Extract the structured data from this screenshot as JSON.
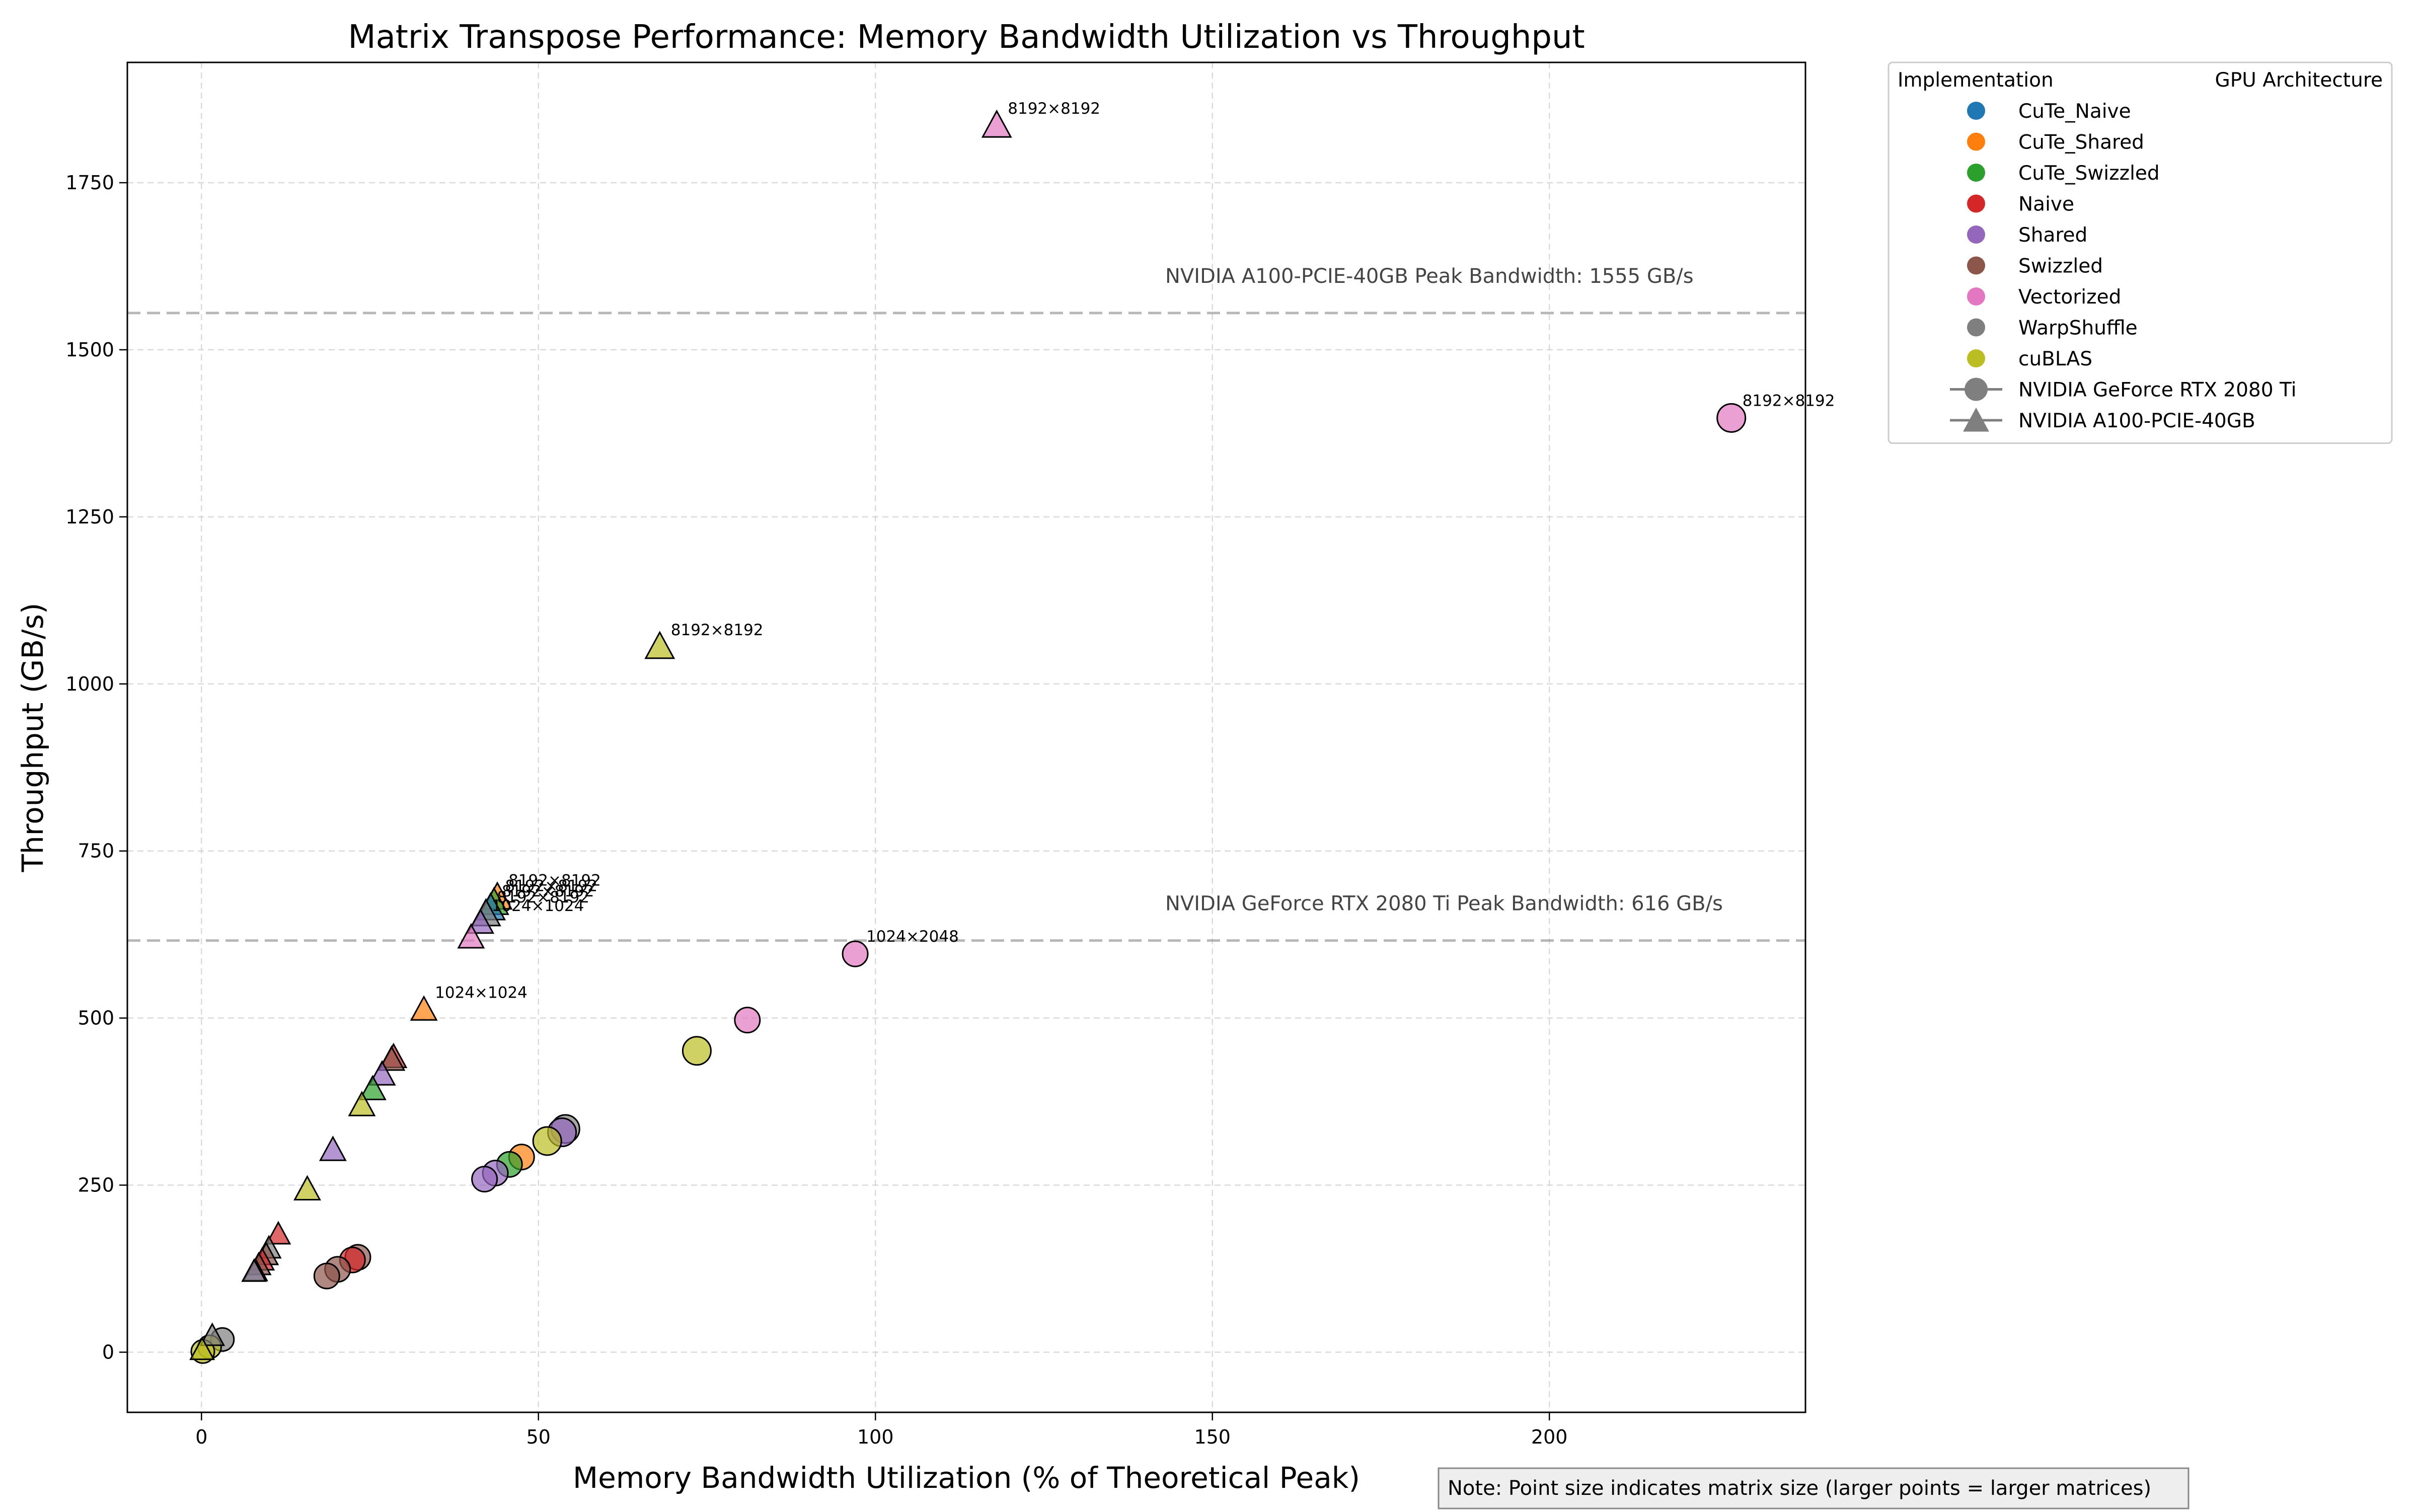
{
  "chart_data": {
    "type": "scatter",
    "title": "Matrix Transpose Performance: Memory Bandwidth Utilization vs Throughput",
    "xlabel": "Memory Bandwidth Utilization (% of Theoretical Peak)",
    "ylabel": "Throughput (GB/s)",
    "xlim": [
      -11,
      238
    ],
    "ylim": [
      -90,
      1930
    ],
    "xticks": [
      0,
      50,
      100,
      150,
      200
    ],
    "yticks": [
      0,
      250,
      500,
      750,
      1000,
      1250,
      1500,
      1750
    ],
    "grid": true,
    "legend_position": "outside-right",
    "implementation_legend_title": "Implementation",
    "gpu_legend_title": "GPU Architecture",
    "implementations": [
      {
        "name": "CuTe_Naive",
        "color": "#1f77b4"
      },
      {
        "name": "CuTe_Shared",
        "color": "#ff7f0e"
      },
      {
        "name": "CuTe_Swizzled",
        "color": "#2ca02c"
      },
      {
        "name": "Naive",
        "color": "#d62728"
      },
      {
        "name": "Shared",
        "color": "#9467bd"
      },
      {
        "name": "Swizzled",
        "color": "#8c564b"
      },
      {
        "name": "Vectorized",
        "color": "#e377c2"
      },
      {
        "name": "WarpShuffle",
        "color": "#7f7f7f"
      },
      {
        "name": "cuBLAS",
        "color": "#bcbd22"
      }
    ],
    "gpus": [
      {
        "name": "NVIDIA GeForce RTX 2080 Ti",
        "marker": "circle"
      },
      {
        "name": "NVIDIA A100-PCIE-40GB",
        "marker": "triangle"
      }
    ],
    "reference_lines": [
      {
        "y": 1555,
        "label": "NVIDIA A100-PCIE-40GB Peak Bandwidth: 1555 GB/s"
      },
      {
        "y": 616,
        "label": "NVIDIA GeForce RTX 2080 Ti Peak Bandwidth: 616 GB/s"
      }
    ],
    "points": [
      {
        "impl": "Vectorized",
        "gpu": "NVIDIA A100-PCIE-40GB",
        "x": 118,
        "y": 1835,
        "size": 3,
        "label": "8192×8192"
      },
      {
        "impl": "Vectorized",
        "gpu": "NVIDIA GeForce RTX 2080 Ti",
        "x": 227,
        "y": 1398,
        "size": 3,
        "label": "8192×8192"
      },
      {
        "impl": "cuBLAS",
        "gpu": "NVIDIA A100-PCIE-40GB",
        "x": 68,
        "y": 1055,
        "size": 3,
        "label": "8192×8192"
      },
      {
        "impl": "CuTe_Shared",
        "gpu": "NVIDIA A100-PCIE-40GB",
        "x": 43.9,
        "y": 680,
        "size": 3,
        "label": "8192×8192"
      },
      {
        "impl": "CuTe_Swizzled",
        "gpu": "NVIDIA A100-PCIE-40GB",
        "x": 43.4,
        "y": 672,
        "size": 3,
        "label": "8192×8192"
      },
      {
        "impl": "CuTe_Naive",
        "gpu": "NVIDIA A100-PCIE-40GB",
        "x": 42.9,
        "y": 664,
        "size": 3,
        "label": "8192×8192"
      },
      {
        "impl": "WarpShuffle",
        "gpu": "NVIDIA A100-PCIE-40GB",
        "x": 42.2,
        "y": 655,
        "size": 3,
        "label": "8192×8192"
      },
      {
        "impl": "Shared",
        "gpu": "NVIDIA A100-PCIE-40GB",
        "x": 41.4,
        "y": 642,
        "size": 2,
        "label": "1024×1024"
      },
      {
        "impl": "Vectorized",
        "gpu": "NVIDIA A100-PCIE-40GB",
        "x": 40.0,
        "y": 620,
        "size": 2,
        "label": ""
      },
      {
        "impl": "CuTe_Shared",
        "gpu": "NVIDIA A100-PCIE-40GB",
        "x": 33.0,
        "y": 512,
        "size": 2,
        "label": "1024×1024"
      },
      {
        "impl": "Vectorized",
        "gpu": "NVIDIA GeForce RTX 2080 Ti",
        "x": 97,
        "y": 596,
        "size": 2,
        "label": "1024×2048"
      },
      {
        "impl": "Vectorized",
        "gpu": "NVIDIA GeForce RTX 2080 Ti",
        "x": 81,
        "y": 497,
        "size": 2,
        "label": ""
      },
      {
        "impl": "cuBLAS",
        "gpu": "NVIDIA GeForce RTX 2080 Ti",
        "x": 73.5,
        "y": 451,
        "size": 3,
        "label": ""
      },
      {
        "impl": "Naive",
        "gpu": "NVIDIA A100-PCIE-40GB",
        "x": 28.5,
        "y": 441,
        "size": 2,
        "label": ""
      },
      {
        "impl": "Swizzled",
        "gpu": "NVIDIA A100-PCIE-40GB",
        "x": 28.2,
        "y": 437,
        "size": 2,
        "label": ""
      },
      {
        "impl": "Shared",
        "gpu": "NVIDIA A100-PCIE-40GB",
        "x": 26.8,
        "y": 415,
        "size": 2,
        "label": ""
      },
      {
        "impl": "CuTe_Swizzled",
        "gpu": "NVIDIA A100-PCIE-40GB",
        "x": 25.4,
        "y": 393,
        "size": 2,
        "label": ""
      },
      {
        "impl": "cuBLAS",
        "gpu": "NVIDIA A100-PCIE-40GB",
        "x": 23.8,
        "y": 369,
        "size": 2,
        "label": ""
      },
      {
        "impl": "Shared",
        "gpu": "NVIDIA A100-PCIE-40GB",
        "x": 19.5,
        "y": 302,
        "size": 2,
        "label": ""
      },
      {
        "impl": "cuBLAS",
        "gpu": "NVIDIA A100-PCIE-40GB",
        "x": 15.7,
        "y": 243,
        "size": 2,
        "label": ""
      },
      {
        "impl": "Naive",
        "gpu": "NVIDIA A100-PCIE-40GB",
        "x": 11.4,
        "y": 176,
        "size": 1,
        "label": ""
      },
      {
        "impl": "WarpShuffle",
        "gpu": "NVIDIA A100-PCIE-40GB",
        "x": 10.0,
        "y": 155,
        "size": 1,
        "label": ""
      },
      {
        "impl": "Swizzled",
        "gpu": "NVIDIA A100-PCIE-40GB",
        "x": 9.6,
        "y": 145,
        "size": 1,
        "label": ""
      },
      {
        "impl": "Naive",
        "gpu": "NVIDIA A100-PCIE-40GB",
        "x": 9.0,
        "y": 137,
        "size": 1,
        "label": ""
      },
      {
        "impl": "Swizzled",
        "gpu": "NVIDIA A100-PCIE-40GB",
        "x": 8.5,
        "y": 130,
        "size": 1,
        "label": ""
      },
      {
        "impl": "Shared",
        "gpu": "NVIDIA A100-PCIE-40GB",
        "x": 8.0,
        "y": 121,
        "size": 1,
        "label": ""
      },
      {
        "impl": "WarpShuffle",
        "gpu": "NVIDIA A100-PCIE-40GB",
        "x": 7.8,
        "y": 120,
        "size": 1,
        "label": ""
      },
      {
        "impl": "WarpShuffle",
        "gpu": "NVIDIA GeForce RTX 2080 Ti",
        "x": 54,
        "y": 334,
        "size": 3,
        "label": ""
      },
      {
        "impl": "Shared",
        "gpu": "NVIDIA GeForce RTX 2080 Ti",
        "x": 53.5,
        "y": 329,
        "size": 3,
        "label": ""
      },
      {
        "impl": "cuBLAS",
        "gpu": "NVIDIA GeForce RTX 2080 Ti",
        "x": 51.3,
        "y": 316,
        "size": 3,
        "label": ""
      },
      {
        "impl": "CuTe_Shared",
        "gpu": "NVIDIA GeForce RTX 2080 Ti",
        "x": 47.5,
        "y": 292,
        "size": 2,
        "label": ""
      },
      {
        "impl": "CuTe_Swizzled",
        "gpu": "NVIDIA GeForce RTX 2080 Ti",
        "x": 45.7,
        "y": 281,
        "size": 2,
        "label": ""
      },
      {
        "impl": "Shared",
        "gpu": "NVIDIA GeForce RTX 2080 Ti",
        "x": 43.6,
        "y": 268,
        "size": 2,
        "label": ""
      },
      {
        "impl": "Shared",
        "gpu": "NVIDIA GeForce RTX 2080 Ti",
        "x": 42.0,
        "y": 259,
        "size": 2,
        "label": ""
      },
      {
        "impl": "Swizzled",
        "gpu": "NVIDIA GeForce RTX 2080 Ti",
        "x": 23.2,
        "y": 142,
        "size": 2,
        "label": ""
      },
      {
        "impl": "Naive",
        "gpu": "NVIDIA GeForce RTX 2080 Ti",
        "x": 22.4,
        "y": 138,
        "size": 2,
        "label": ""
      },
      {
        "impl": "Swizzled",
        "gpu": "NVIDIA GeForce RTX 2080 Ti",
        "x": 20.2,
        "y": 124,
        "size": 2,
        "label": ""
      },
      {
        "impl": "Swizzled",
        "gpu": "NVIDIA GeForce RTX 2080 Ti",
        "x": 18.6,
        "y": 114,
        "size": 2,
        "label": ""
      },
      {
        "impl": "WarpShuffle",
        "gpu": "NVIDIA GeForce RTX 2080 Ti",
        "x": 3.1,
        "y": 19,
        "size": 1,
        "label": ""
      },
      {
        "impl": "cuBLAS",
        "gpu": "NVIDIA GeForce RTX 2080 Ti",
        "x": 1.2,
        "y": 8,
        "size": 1,
        "label": ""
      },
      {
        "impl": "cuBLAS",
        "gpu": "NVIDIA GeForce RTX 2080 Ti",
        "x": 0.2,
        "y": 1,
        "size": 1,
        "label": ""
      },
      {
        "impl": "WarpShuffle",
        "gpu": "NVIDIA A100-PCIE-40GB",
        "x": 1.6,
        "y": 24,
        "size": 1,
        "label": ""
      },
      {
        "impl": "cuBLAS",
        "gpu": "NVIDIA A100-PCIE-40GB",
        "x": 0.1,
        "y": 3,
        "size": 1,
        "label": ""
      }
    ],
    "note": "Note: Point size indicates matrix size (larger points = larger matrices)"
  }
}
